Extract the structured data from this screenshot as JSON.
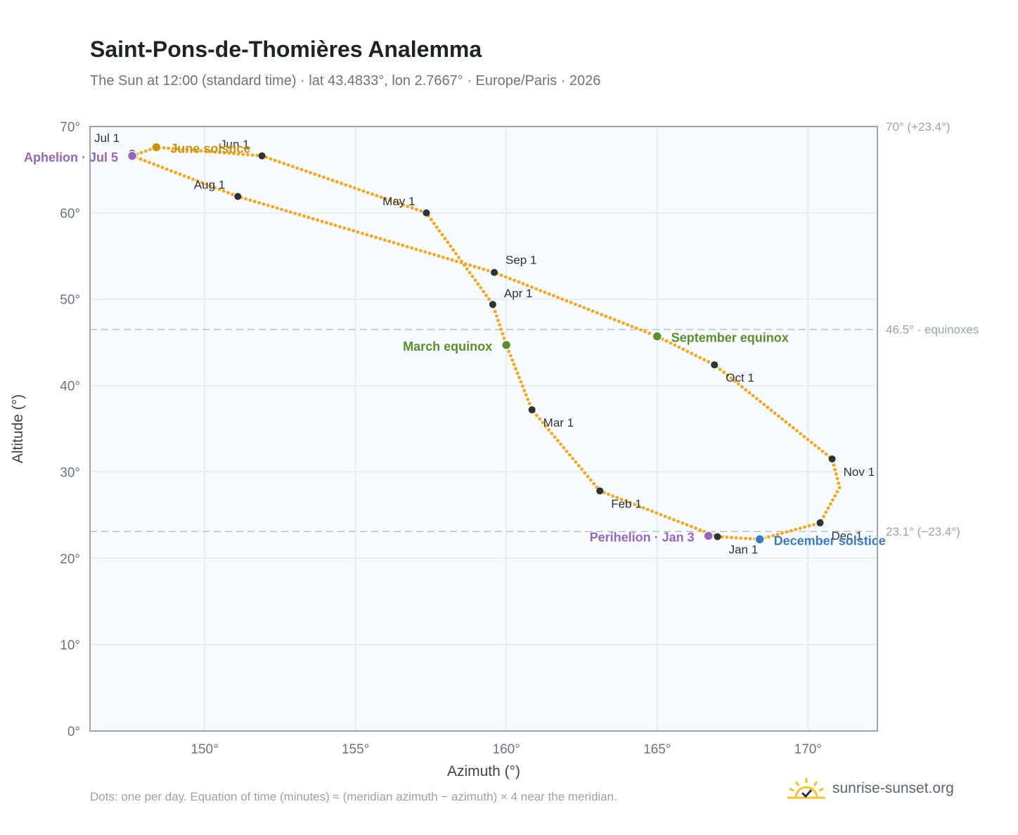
{
  "header": {
    "title": "Saint-Pons-de-Thomières Analemma",
    "subtitle": "The Sun at 12:00 (standard time) · lat 43.4833°, lon 2.7667° · Europe/Paris · 2026"
  },
  "footer": {
    "note": "Dots: one per day. Equation of time (minutes) ≈ (meridian azimuth − azimuth) × 4 near the meridian.",
    "brand": "sunrise-sunset.org",
    "brand_icon": "sun-icon"
  },
  "colors": {
    "path": "#f5a623",
    "month_marker": "#2d3138",
    "equinox": "#5a8f2e",
    "june_solstice": "#c99213",
    "december_solstice": "#3a7bbf",
    "apsis": "#9467bd",
    "plot_bg": "#f8fbfd",
    "grid": "#e3e8ee",
    "frame": "#9aa4b1",
    "ref_line": "#b8c0c9"
  },
  "chart_data": {
    "type": "scatter",
    "xlabel": "Azimuth (°)",
    "ylabel": "Altitude (°)",
    "xlim": [
      146.2,
      172.3
    ],
    "ylim": [
      0,
      70
    ],
    "x_ticks": [
      "150°",
      "155°",
      "160°",
      "165°",
      "170°"
    ],
    "x_tick_values": [
      150,
      155,
      160,
      165,
      170
    ],
    "y_ticks": [
      "0°",
      "10°",
      "20°",
      "30°",
      "40°",
      "50°",
      "60°",
      "70°"
    ],
    "y_tick_values": [
      0,
      10,
      20,
      30,
      40,
      50,
      60,
      70
    ],
    "grid": true,
    "reference_lines": [
      {
        "y": 70.0,
        "label": "70° (+23.4°)"
      },
      {
        "y": 46.5,
        "label": "46.5° · equinoxes"
      },
      {
        "y": 23.1,
        "label": "23.1° (−23.4°)"
      }
    ],
    "path_points": [
      [
        167.0,
        22.5
      ],
      [
        163.1,
        27.8
      ],
      [
        160.85,
        37.2
      ],
      [
        160.0,
        44.7
      ],
      [
        159.55,
        49.4
      ],
      [
        157.35,
        60.0
      ],
      [
        151.9,
        66.6
      ],
      [
        148.4,
        67.6
      ],
      [
        147.6,
        66.6
      ],
      [
        151.1,
        61.9
      ],
      [
        159.6,
        53.1
      ],
      [
        165.0,
        45.7
      ],
      [
        166.9,
        42.4
      ],
      [
        170.8,
        31.5
      ],
      [
        171.05,
        28.2
      ],
      [
        170.4,
        24.1
      ],
      [
        168.4,
        22.2
      ],
      [
        167.0,
        22.5
      ]
    ],
    "months": [
      {
        "label": "Jan 1",
        "x": 167.0,
        "y": 22.5
      },
      {
        "label": "Feb 1",
        "x": 163.1,
        "y": 27.8
      },
      {
        "label": "Mar 1",
        "x": 160.85,
        "y": 37.2
      },
      {
        "label": "Apr 1",
        "x": 159.55,
        "y": 49.4
      },
      {
        "label": "May 1",
        "x": 157.35,
        "y": 60.0
      },
      {
        "label": "Jun 1",
        "x": 151.9,
        "y": 66.6
      },
      {
        "label": "Jul 1",
        "x": 147.6,
        "y": 66.9
      },
      {
        "label": "Aug 1",
        "x": 151.1,
        "y": 61.9
      },
      {
        "label": "Sep 1",
        "x": 159.6,
        "y": 53.1
      },
      {
        "label": "Oct 1",
        "x": 166.9,
        "y": 42.4
      },
      {
        "label": "Nov 1",
        "x": 170.8,
        "y": 31.5
      },
      {
        "label": "Dec 1",
        "x": 170.4,
        "y": 24.1
      }
    ],
    "events": [
      {
        "label": "March equinox",
        "x": 160.0,
        "y": 44.7,
        "kind": "equinox"
      },
      {
        "label": "September equinox",
        "x": 165.0,
        "y": 45.7,
        "kind": "equinox"
      },
      {
        "label": "June solstice",
        "x": 148.4,
        "y": 67.6,
        "kind": "june_solstice"
      },
      {
        "label": "December solstice",
        "x": 168.4,
        "y": 22.2,
        "kind": "december_solstice"
      },
      {
        "label": "Aphelion · Jul 5",
        "x": 147.6,
        "y": 66.6,
        "kind": "apsis"
      },
      {
        "label": "Perihelion · Jan 3",
        "x": 166.7,
        "y": 22.6,
        "kind": "apsis"
      }
    ]
  }
}
